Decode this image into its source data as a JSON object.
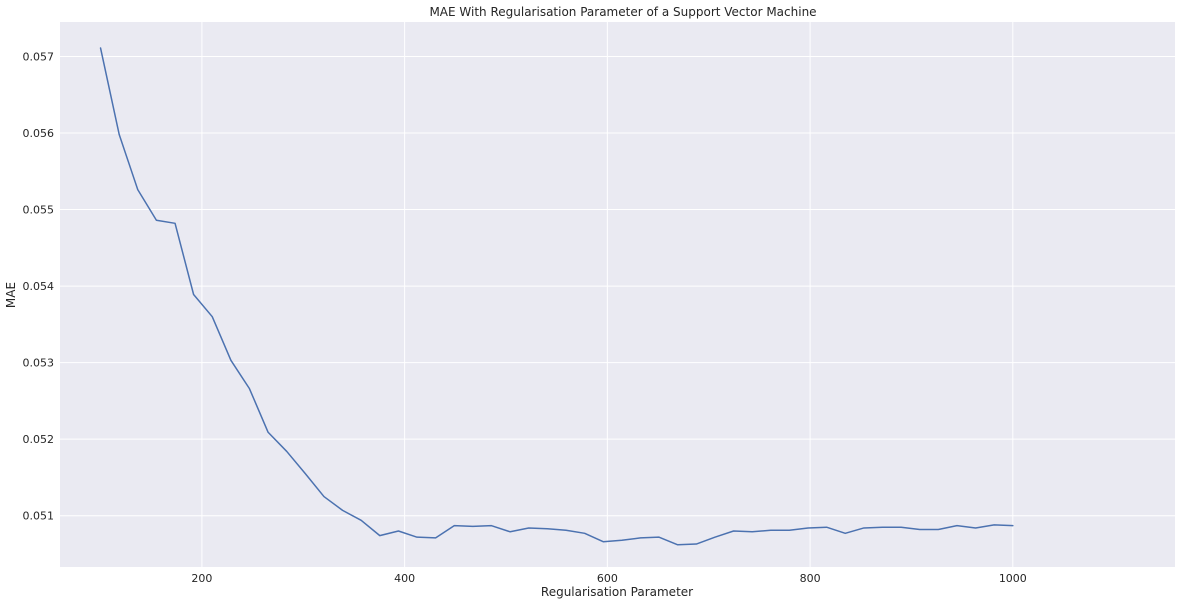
{
  "chart_data": {
    "type": "line",
    "title": "MAE With Regularisation Parameter of a Support Vector Machine",
    "xlabel": "Regularisation Parameter",
    "ylabel": "MAE",
    "xlim": [
      60,
      1160
    ],
    "ylim": [
      0.05033,
      0.05745
    ],
    "xticks": [
      200,
      400,
      600,
      800,
      1000
    ],
    "xtick_labels": [
      "200",
      "400",
      "600",
      "800",
      "1000"
    ],
    "yticks": [
      0.051,
      0.052,
      0.053,
      0.054,
      0.055,
      0.056,
      0.057
    ],
    "ytick_labels": [
      "0.051",
      "0.052",
      "0.053",
      "0.054",
      "0.055",
      "0.056",
      "0.057"
    ],
    "grid": true,
    "background": "#eaeaf2",
    "line_color": "#4c72b0",
    "series": [
      {
        "x": [
          100,
          118.4,
          136.7,
          155.1,
          173.5,
          191.8,
          210.2,
          228.6,
          246.9,
          265.3,
          283.7,
          302,
          320.4,
          338.8,
          357.1,
          375.5,
          393.9,
          412.2,
          430.6,
          449,
          467.3,
          485.7,
          504.1,
          522.4,
          540.8,
          559.2,
          577.6,
          595.9,
          614.3,
          632.7,
          651,
          669.4,
          687.8,
          706.1,
          724.5,
          742.9,
          761.2,
          779.6,
          798,
          816.3,
          834.7,
          853.1,
          871.4,
          889.8,
          908.2,
          926.5,
          944.9,
          963.3,
          981.6,
          1000
        ],
        "y": [
          0.05711,
          0.05598,
          0.05526,
          0.05486,
          0.05482,
          0.05389,
          0.0536,
          0.05303,
          0.05266,
          0.05209,
          0.05184,
          0.05155,
          0.05125,
          0.05107,
          0.05094,
          0.05074,
          0.0508,
          0.05072,
          0.05071,
          0.05087,
          0.05086,
          0.05087,
          0.05079,
          0.05084,
          0.05083,
          0.05081,
          0.05077,
          0.05066,
          0.05068,
          0.05071,
          0.05072,
          0.05062,
          0.05063,
          0.05072,
          0.0508,
          0.05079,
          0.05081,
          0.05081,
          0.05084,
          0.05085,
          0.05077,
          0.05084,
          0.05085,
          0.05085,
          0.05082,
          0.05082,
          0.05087,
          0.05084,
          0.05088,
          0.05087
        ]
      }
    ]
  }
}
